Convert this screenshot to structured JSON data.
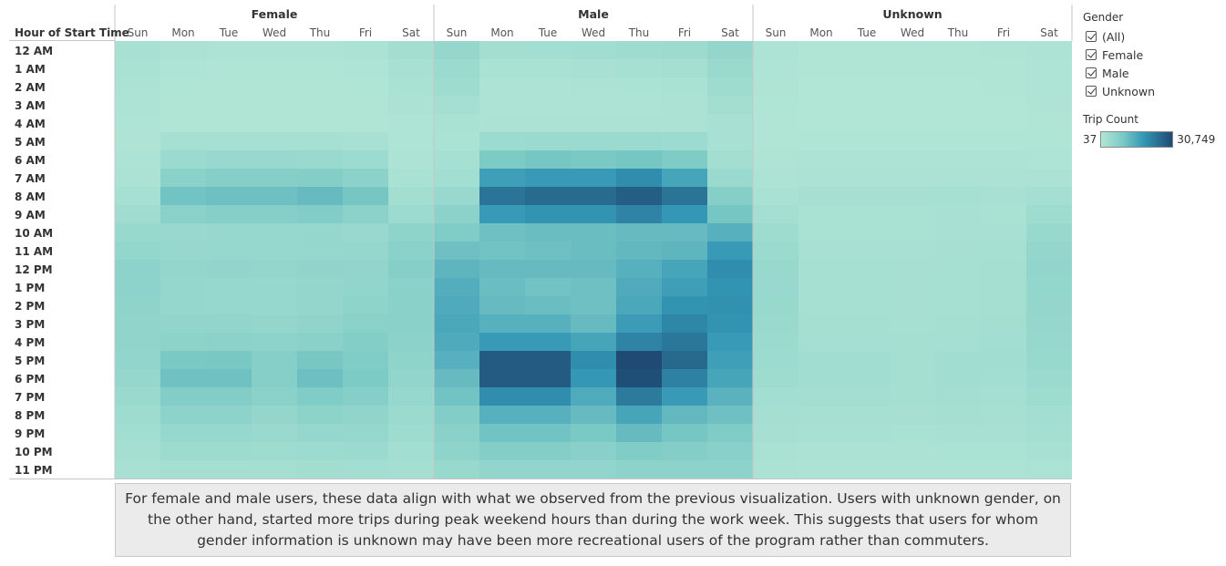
{
  "chart_data": {
    "type": "heatmap",
    "row_axis_title": "Hour of Start Time",
    "groups": [
      "Female",
      "Male",
      "Unknown"
    ],
    "days": [
      "Sun",
      "Mon",
      "Tue",
      "Wed",
      "Thu",
      "Fri",
      "Sat"
    ],
    "hours": [
      "12 AM",
      "1 AM",
      "2 AM",
      "3 AM",
      "4 AM",
      "5 AM",
      "6 AM",
      "7 AM",
      "8 AM",
      "9 AM",
      "10 AM",
      "11 AM",
      "12 PM",
      "1 PM",
      "2 PM",
      "3 PM",
      "4 PM",
      "5 PM",
      "6 PM",
      "7 PM",
      "8 PM",
      "9 PM",
      "10 PM",
      "11 PM"
    ],
    "color_min": 37,
    "color_max": 30749,
    "color_range_colors": [
      "#b2e6d6",
      "#1e4a73"
    ],
    "values": {
      "Female": [
        [
          1800,
          1200,
          1000,
          1000,
          1000,
          1400,
          2600
        ],
        [
          1500,
          700,
          500,
          500,
          500,
          700,
          1800
        ],
        [
          1300,
          500,
          400,
          400,
          400,
          500,
          1500
        ],
        [
          1000,
          400,
          300,
          300,
          300,
          400,
          1200
        ],
        [
          700,
          400,
          300,
          300,
          300,
          400,
          800
        ],
        [
          600,
          2000,
          2000,
          2000,
          2000,
          1800,
          700
        ],
        [
          900,
          4000,
          4500,
          4500,
          4300,
          3800,
          1000
        ],
        [
          1300,
          7000,
          7600,
          7600,
          8000,
          6500,
          1500
        ],
        [
          2100,
          10500,
          11000,
          11000,
          12000,
          10000,
          2600
        ],
        [
          3100,
          7000,
          7600,
          7500,
          8200,
          6500,
          3800
        ],
        [
          4400,
          4500,
          4800,
          4800,
          5000,
          4500,
          6000
        ],
        [
          5400,
          4600,
          4800,
          4800,
          5000,
          5000,
          7000
        ],
        [
          6200,
          5400,
          5600,
          5400,
          5800,
          5600,
          7600
        ],
        [
          6200,
          5000,
          4600,
          4800,
          5200,
          5600,
          7000
        ],
        [
          6000,
          5000,
          4800,
          4600,
          5200,
          6000,
          7000
        ],
        [
          5900,
          5600,
          5600,
          5200,
          5800,
          6800,
          6800
        ],
        [
          5800,
          6400,
          6600,
          6200,
          7000,
          8000,
          6500
        ],
        [
          5500,
          9400,
          9600,
          7600,
          9800,
          8600,
          6000
        ],
        [
          5000,
          10800,
          10800,
          7600,
          11200,
          9000,
          5500
        ],
        [
          4200,
          8200,
          8200,
          6800,
          8600,
          7600,
          4800
        ],
        [
          3400,
          6200,
          6200,
          5200,
          6400,
          5800,
          4000
        ],
        [
          2800,
          4800,
          4800,
          4200,
          5000,
          5000,
          3400
        ],
        [
          2300,
          3600,
          3600,
          3400,
          3800,
          3900,
          2800
        ],
        [
          1700,
          2400,
          2400,
          2400,
          2600,
          2800,
          2200
        ]
      ],
      "Male": [
        [
          5000,
          2600,
          2800,
          3000,
          3200,
          3600,
          5200
        ],
        [
          4000,
          1500,
          1600,
          1800,
          2000,
          2400,
          4200
        ],
        [
          3200,
          1000,
          1100,
          1200,
          1400,
          1600,
          3400
        ],
        [
          2400,
          900,
          900,
          1000,
          1000,
          1200,
          2600
        ],
        [
          1500,
          1200,
          1200,
          1200,
          1200,
          1200,
          1800
        ],
        [
          1400,
          3800,
          4000,
          4000,
          4000,
          3800,
          1800
        ],
        [
          2000,
          9000,
          10000,
          9500,
          10000,
          8800,
          2600
        ],
        [
          2800,
          17000,
          18000,
          18000,
          20000,
          16000,
          4200
        ],
        [
          4500,
          24000,
          25500,
          25500,
          27500,
          24000,
          7500
        ],
        [
          6500,
          18000,
          19000,
          19000,
          21500,
          18500,
          10000
        ],
        [
          8500,
          11000,
          11500,
          11500,
          12000,
          12000,
          14000
        ],
        [
          11000,
          10500,
          11000,
          11500,
          12500,
          13000,
          18000
        ],
        [
          13000,
          12000,
          12000,
          12000,
          14000,
          16000,
          20000
        ],
        [
          14500,
          11500,
          10500,
          11000,
          15000,
          17000,
          19000
        ],
        [
          15000,
          12000,
          11500,
          11000,
          15500,
          19000,
          19500
        ],
        [
          15500,
          14000,
          14000,
          12000,
          17500,
          21000,
          19000
        ],
        [
          15000,
          18000,
          18000,
          16000,
          21500,
          23500,
          18000
        ],
        [
          14000,
          28000,
          28000,
          20000,
          30749,
          26000,
          17000
        ],
        [
          12000,
          28000,
          28000,
          18500,
          30000,
          22000,
          16000
        ],
        [
          10500,
          20000,
          20000,
          15000,
          23000,
          18000,
          13500
        ],
        [
          8200,
          14000,
          14000,
          12000,
          16000,
          12500,
          11000
        ],
        [
          7000,
          10500,
          10500,
          9500,
          12000,
          10000,
          8800
        ],
        [
          6000,
          7800,
          7800,
          7200,
          8600,
          7800,
          7200
        ],
        [
          4400,
          5500,
          5500,
          5500,
          6200,
          6200,
          6200
        ]
      ],
      "Unknown": [
        [
          900,
          500,
          500,
          500,
          500,
          600,
          1000
        ],
        [
          700,
          300,
          300,
          300,
          300,
          400,
          800
        ],
        [
          600,
          250,
          250,
          250,
          250,
          300,
          700
        ],
        [
          500,
          200,
          200,
          200,
          200,
          250,
          600
        ],
        [
          400,
          250,
          250,
          250,
          250,
          250,
          400
        ],
        [
          400,
          500,
          500,
          500,
          500,
          500,
          500
        ],
        [
          600,
          900,
          900,
          900,
          900,
          900,
          800
        ],
        [
          900,
          1300,
          1300,
          1300,
          1300,
          1200,
          1200
        ],
        [
          1500,
          1900,
          1900,
          1900,
          2000,
          1800,
          2200
        ],
        [
          2300,
          1600,
          1600,
          1600,
          1700,
          1600,
          3400
        ],
        [
          3300,
          1600,
          1600,
          1600,
          1700,
          1700,
          4400
        ],
        [
          4000,
          1800,
          1800,
          1800,
          1900,
          2000,
          5200
        ],
        [
          4400,
          2000,
          2000,
          1900,
          2000,
          2200,
          5600
        ],
        [
          4500,
          2100,
          2000,
          1900,
          2000,
          2300,
          5400
        ],
        [
          4400,
          2100,
          2100,
          1900,
          2100,
          2400,
          5200
        ],
        [
          4300,
          2300,
          2300,
          2100,
          2300,
          2600,
          5000
        ],
        [
          4100,
          2500,
          2500,
          2300,
          2500,
          2800,
          4800
        ],
        [
          3800,
          2900,
          2900,
          2500,
          2900,
          2900,
          4400
        ],
        [
          3400,
          2900,
          2900,
          2500,
          2900,
          2700,
          4000
        ],
        [
          2800,
          2600,
          2600,
          2300,
          2600,
          2500,
          3400
        ],
        [
          2300,
          2100,
          2100,
          1900,
          2200,
          2100,
          2800
        ],
        [
          1900,
          1700,
          1700,
          1600,
          1800,
          1800,
          2200
        ],
        [
          1500,
          1300,
          1300,
          1200,
          1400,
          1400,
          1800
        ],
        [
          1200,
          900,
          900,
          900,
          1000,
          1000,
          1400
        ]
      ]
    }
  },
  "annotation_text": "For female and male users, these data align with what we observed from the previous visualization. Users with unknown gender, on the other hand, started more trips during peak weekend hours than during the work week. This suggests that users for whom gender information is unknown may have been more recreational users of the program rather than commuters.",
  "legend": {
    "gender_title": "Gender",
    "gender_options": [
      {
        "label": "(All)",
        "checked": true
      },
      {
        "label": "Female",
        "checked": true
      },
      {
        "label": "Male",
        "checked": true
      },
      {
        "label": "Unknown",
        "checked": true
      }
    ],
    "trip_count_title": "Trip Count",
    "min_label": "37",
    "max_label": "30,749"
  }
}
